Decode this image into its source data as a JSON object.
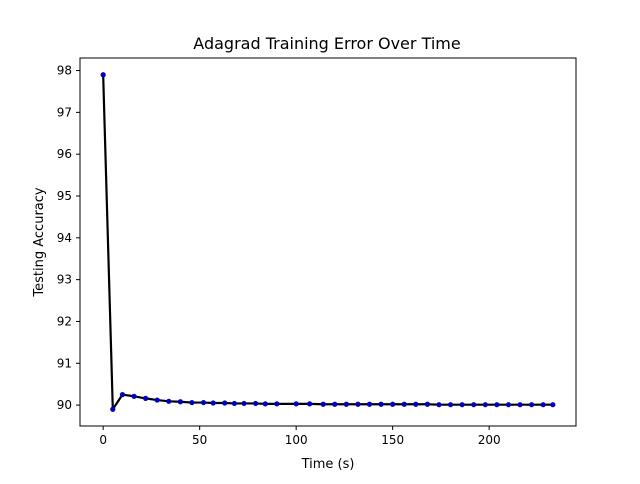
{
  "chart_data": {
    "type": "line",
    "title": "Adagrad Training Error Over Time",
    "xlabel": "Time (s)",
    "ylabel": "Testing Accuracy",
    "xlim": [
      -12,
      245
    ],
    "ylim": [
      89.5,
      98.3
    ],
    "xticks": [
      0,
      50,
      100,
      150,
      200
    ],
    "yticks": [
      90,
      91,
      92,
      93,
      94,
      95,
      96,
      97,
      98
    ],
    "grid": false,
    "legend": "none",
    "series": [
      {
        "line_color": "#000000",
        "marker_color": "#0000bf",
        "points": [
          {
            "x": 0.0,
            "y": 97.9
          },
          {
            "x": 5.0,
            "y": 89.9
          },
          {
            "x": 10.0,
            "y": 90.25
          },
          {
            "x": 16.0,
            "y": 90.21
          },
          {
            "x": 22.0,
            "y": 90.16
          },
          {
            "x": 28.0,
            "y": 90.12
          },
          {
            "x": 34.0,
            "y": 90.09
          },
          {
            "x": 40.0,
            "y": 90.08
          },
          {
            "x": 46.0,
            "y": 90.06
          },
          {
            "x": 52.0,
            "y": 90.06
          },
          {
            "x": 57.0,
            "y": 90.05
          },
          {
            "x": 63.0,
            "y": 90.05
          },
          {
            "x": 68.0,
            "y": 90.04
          },
          {
            "x": 73.0,
            "y": 90.04
          },
          {
            "x": 79.0,
            "y": 90.04
          },
          {
            "x": 84.0,
            "y": 90.03
          },
          {
            "x": 90.0,
            "y": 90.03
          },
          {
            "x": 100.0,
            "y": 90.03
          },
          {
            "x": 107.0,
            "y": 90.03
          },
          {
            "x": 114.0,
            "y": 90.02
          },
          {
            "x": 120.0,
            "y": 90.02
          },
          {
            "x": 126.0,
            "y": 90.02
          },
          {
            "x": 132.0,
            "y": 90.02
          },
          {
            "x": 138.0,
            "y": 90.02
          },
          {
            "x": 144.0,
            "y": 90.02
          },
          {
            "x": 150.0,
            "y": 90.02
          },
          {
            "x": 156.0,
            "y": 90.02
          },
          {
            "x": 162.0,
            "y": 90.02
          },
          {
            "x": 168.0,
            "y": 90.02
          },
          {
            "x": 174.0,
            "y": 90.01
          },
          {
            "x": 180.0,
            "y": 90.01
          },
          {
            "x": 186.0,
            "y": 90.01
          },
          {
            "x": 192.0,
            "y": 90.01
          },
          {
            "x": 198.0,
            "y": 90.01
          },
          {
            "x": 204.0,
            "y": 90.01
          },
          {
            "x": 210.0,
            "y": 90.01
          },
          {
            "x": 216.0,
            "y": 90.01
          },
          {
            "x": 222.0,
            "y": 90.01
          },
          {
            "x": 228.0,
            "y": 90.01
          },
          {
            "x": 233.0,
            "y": 90.01
          }
        ]
      }
    ]
  }
}
